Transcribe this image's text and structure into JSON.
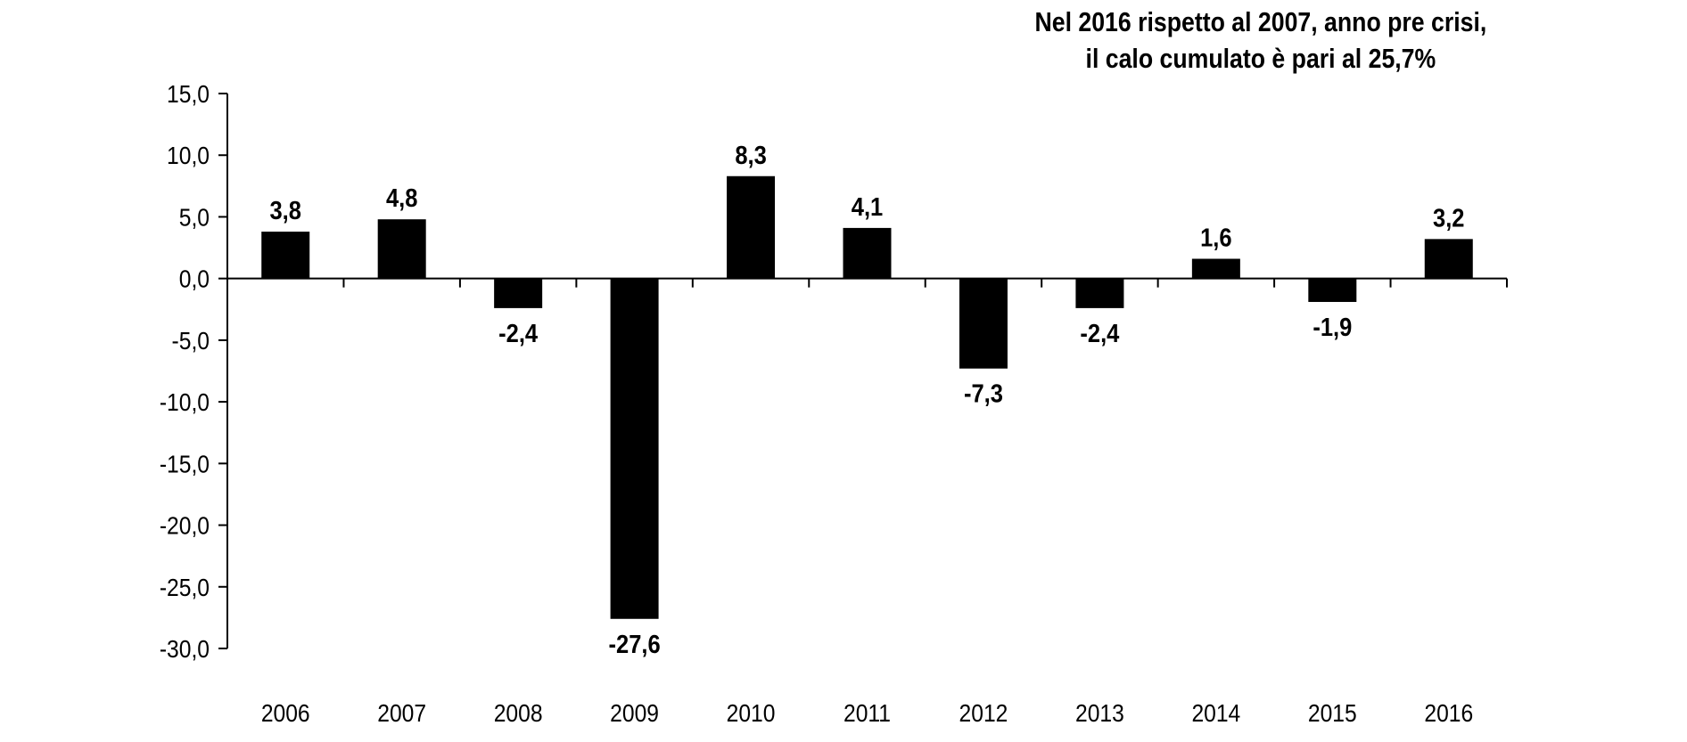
{
  "chart_data": {
    "type": "bar",
    "categories": [
      "2006",
      "2007",
      "2008",
      "2009",
      "2010",
      "2011",
      "2012",
      "2013",
      "2014",
      "2015",
      "2016"
    ],
    "values": [
      3.8,
      4.8,
      -2.4,
      -27.6,
      8.3,
      4.1,
      -7.3,
      -2.4,
      1.6,
      -1.9,
      3.2
    ],
    "data_labels": [
      "3,8",
      "4,8",
      "-2,4",
      "-27,6",
      "8,3",
      "4,1",
      "-7,3",
      "-2,4",
      "1,6",
      "-1,9",
      "3,2"
    ],
    "y_ticks": [
      15,
      10,
      5,
      0,
      -5,
      -10,
      -15,
      -20,
      -25,
      -30
    ],
    "y_tick_labels": [
      "15,0",
      "10,0",
      "5,0",
      "0,0",
      "-5,0",
      "-10,0",
      "-15,0",
      "-20,0",
      "-25,0",
      "-30,0"
    ],
    "ylim": [
      -30,
      15
    ],
    "title": "",
    "xlabel": "",
    "ylabel": "",
    "grid": false,
    "bar_color": "#000000",
    "annotation": {
      "line1": "Nel 2016 rispetto al 2007, anno pre crisi,",
      "line2": "il calo cumulato è pari al 25,7%"
    }
  }
}
